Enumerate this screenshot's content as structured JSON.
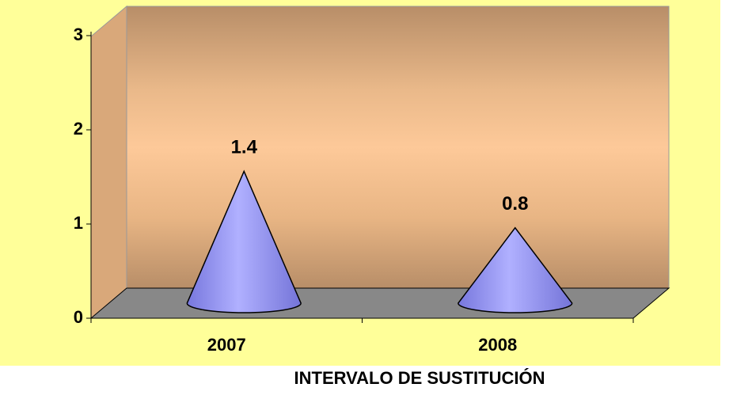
{
  "chart_data": {
    "type": "cone",
    "xlabel": "INTERVALO DE SUSTITUCIÓN",
    "categories": [
      "2007",
      "2008"
    ],
    "values": [
      1.4,
      0.8
    ],
    "color": "#9999ff",
    "ylim": [
      0,
      3
    ],
    "yticks": [
      0,
      1,
      2,
      3
    ]
  }
}
